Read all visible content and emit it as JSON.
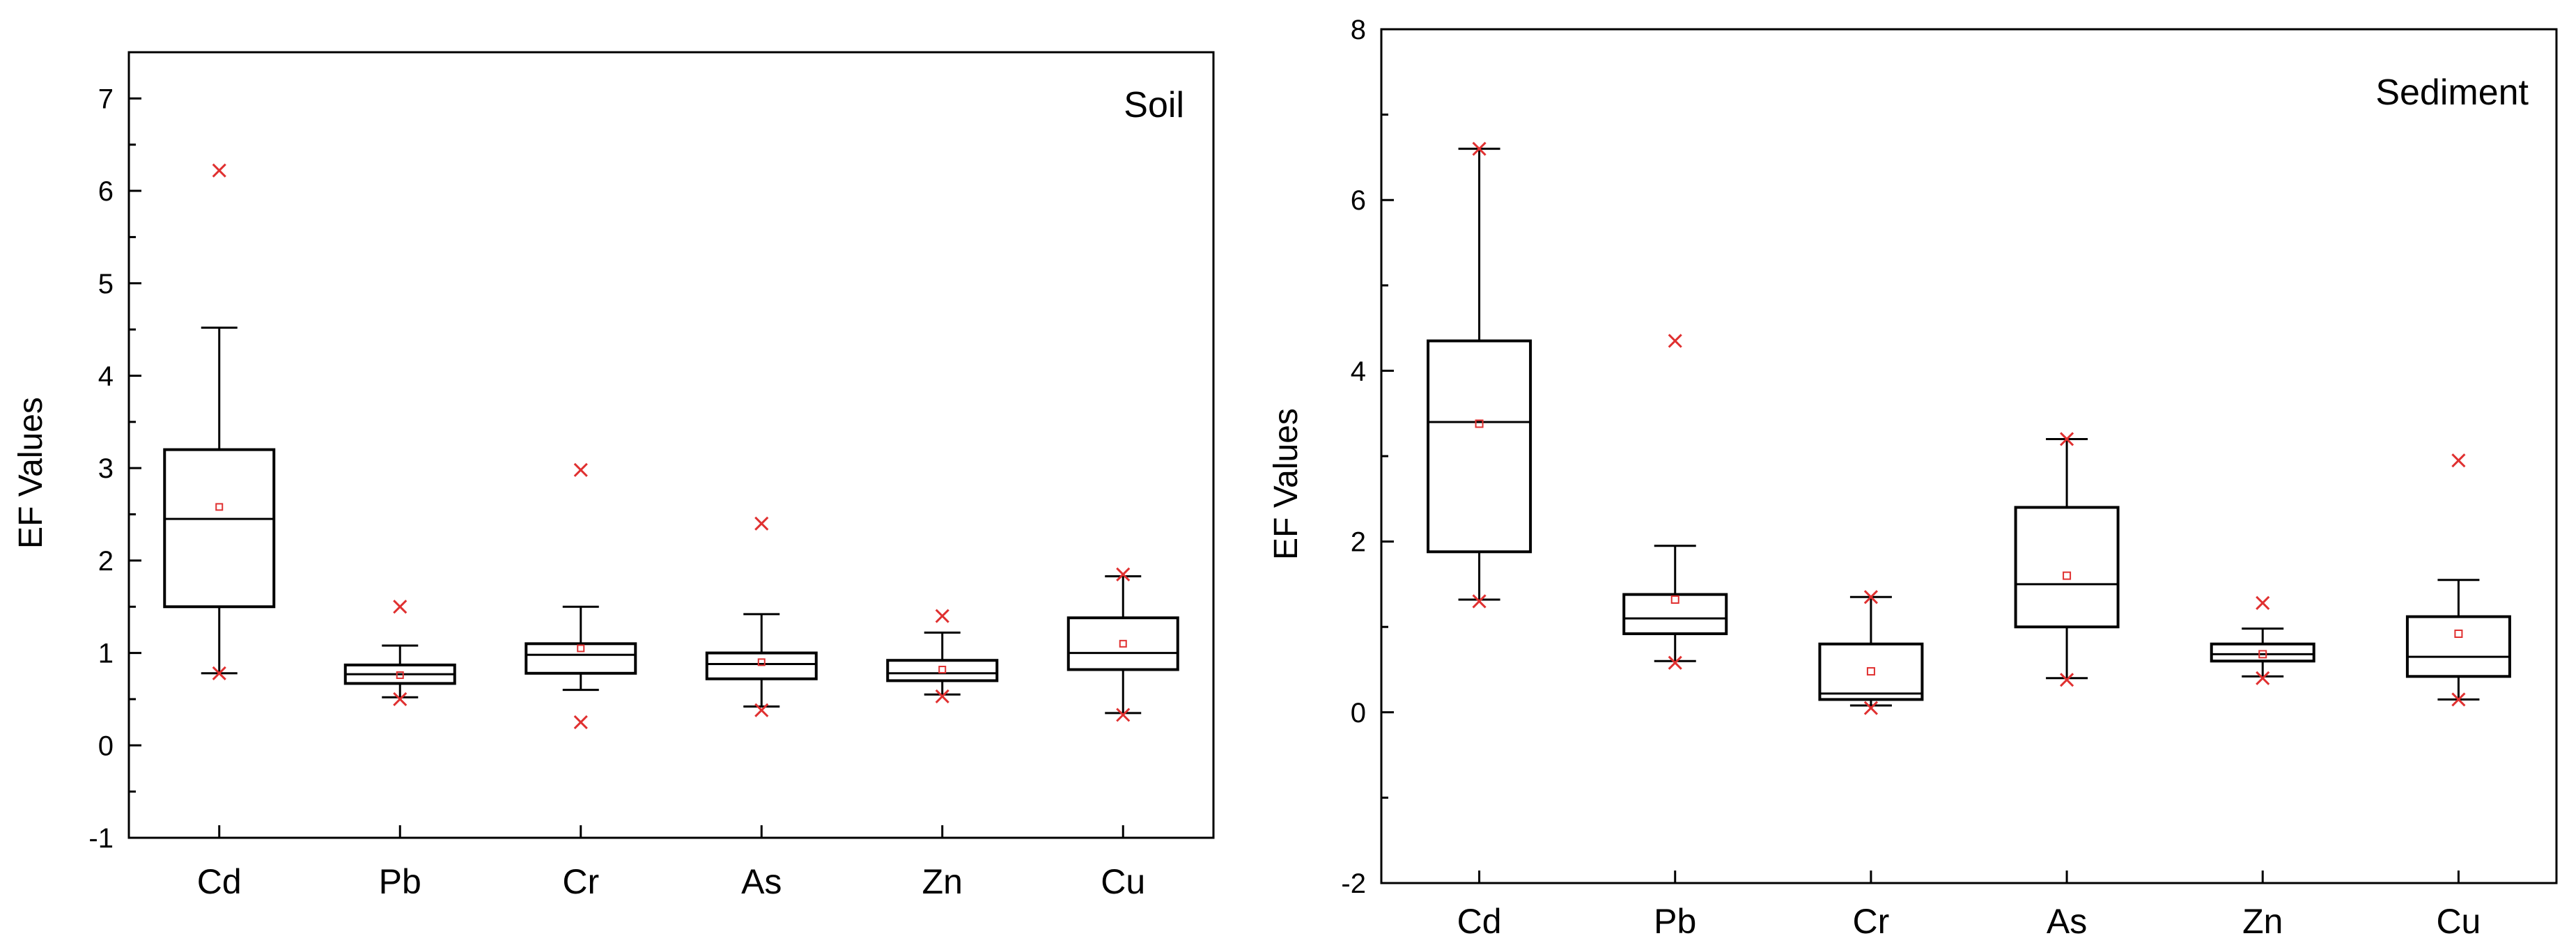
{
  "colors": {
    "outlier": "#e03030",
    "mean": "#e03030",
    "axes": "#000000"
  },
  "chart_data": [
    {
      "type": "box",
      "title": "Soil",
      "xlabel": "",
      "ylabel": "EF Values",
      "ylim": [
        -1,
        7.5
      ],
      "yticks": [
        -1,
        0,
        1,
        2,
        3,
        4,
        5,
        6,
        7
      ],
      "categories": [
        "Cd",
        "Pb",
        "Cr",
        "As",
        "Zn",
        "Cu"
      ],
      "boxes": [
        {
          "name": "Cd",
          "whisker_low": 0.78,
          "q1": 1.5,
          "median": 2.45,
          "q3": 3.2,
          "whisker_high": 4.52,
          "mean": 2.58,
          "min": 0.78,
          "max": 6.22,
          "outliers": [
            6.22
          ]
        },
        {
          "name": "Pb",
          "whisker_low": 0.52,
          "q1": 0.67,
          "median": 0.77,
          "q3": 0.87,
          "whisker_high": 1.08,
          "mean": 0.76,
          "min": 0.5,
          "max": 1.5,
          "outliers": [
            1.5
          ]
        },
        {
          "name": "Cr",
          "whisker_low": 0.6,
          "q1": 0.78,
          "median": 0.98,
          "q3": 1.1,
          "whisker_high": 1.5,
          "mean": 1.05,
          "min": 0.25,
          "max": 2.98,
          "outliers": [
            2.98,
            0.25
          ]
        },
        {
          "name": "As",
          "whisker_low": 0.42,
          "q1": 0.72,
          "median": 0.88,
          "q3": 1.0,
          "whisker_high": 1.42,
          "mean": 0.9,
          "min": 0.38,
          "max": 2.4,
          "outliers": [
            2.4
          ]
        },
        {
          "name": "Zn",
          "whisker_low": 0.55,
          "q1": 0.7,
          "median": 0.78,
          "q3": 0.92,
          "whisker_high": 1.22,
          "mean": 0.82,
          "min": 0.53,
          "max": 1.4,
          "outliers": []
        },
        {
          "name": "Cu",
          "whisker_low": 0.35,
          "q1": 0.82,
          "median": 1.0,
          "q3": 1.38,
          "whisker_high": 1.83,
          "mean": 1.1,
          "min": 0.33,
          "max": 1.85,
          "outliers": []
        }
      ]
    },
    {
      "type": "box",
      "title": "Sediment",
      "xlabel": "",
      "ylabel": "EF Values",
      "ylim": [
        -2,
        8
      ],
      "yticks": [
        -2,
        0,
        2,
        4,
        6,
        8
      ],
      "categories": [
        "Cd",
        "Pb",
        "Cr",
        "As",
        "Zn",
        "Cu"
      ],
      "boxes": [
        {
          "name": "Cd",
          "whisker_low": 1.32,
          "q1": 1.88,
          "median": 3.4,
          "q3": 4.35,
          "whisker_high": 6.6,
          "mean": 3.38,
          "min": 1.3,
          "max": 6.6,
          "outliers": []
        },
        {
          "name": "Pb",
          "whisker_low": 0.6,
          "q1": 0.92,
          "median": 1.1,
          "q3": 1.38,
          "whisker_high": 1.95,
          "mean": 1.32,
          "min": 0.58,
          "max": 4.35,
          "outliers": [
            4.35
          ]
        },
        {
          "name": "Cr",
          "whisker_low": 0.08,
          "q1": 0.15,
          "median": 0.22,
          "q3": 0.8,
          "whisker_high": 1.35,
          "mean": 0.48,
          "min": 0.05,
          "max": 1.35,
          "outliers": []
        },
        {
          "name": "As",
          "whisker_low": 0.4,
          "q1": 1.0,
          "median": 1.5,
          "q3": 2.4,
          "whisker_high": 3.2,
          "mean": 1.6,
          "min": 0.38,
          "max": 3.2,
          "outliers": []
        },
        {
          "name": "Zn",
          "whisker_low": 0.42,
          "q1": 0.6,
          "median": 0.68,
          "q3": 0.8,
          "whisker_high": 0.98,
          "mean": 0.68,
          "min": 0.4,
          "max": 1.28,
          "outliers": [
            1.28
          ]
        },
        {
          "name": "Cu",
          "whisker_low": 0.15,
          "q1": 0.42,
          "median": 0.65,
          "q3": 1.12,
          "whisker_high": 1.55,
          "mean": 0.92,
          "min": 0.15,
          "max": 2.95,
          "outliers": [
            2.95
          ]
        }
      ]
    }
  ]
}
